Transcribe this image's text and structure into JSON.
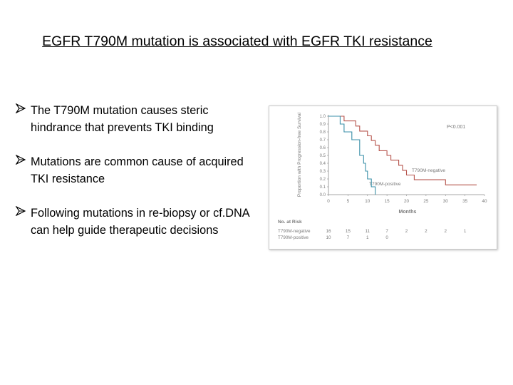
{
  "slide": {
    "title": "EGFR T790M mutation is associated with EGFR TKI resistance"
  },
  "bullets": [
    {
      "text": "The T790M mutation causes steric hindrance that prevents TKI binding"
    },
    {
      "text": "Mutations are common cause of acquired TKI resistance"
    },
    {
      "text": "Following mutations in re-biopsy or cf.DNA can help guide therapeutic decisions"
    }
  ],
  "colors": {
    "negative_curve": "#b5524a",
    "positive_curve": "#3a8fa8",
    "axis": "#8a8a8a"
  },
  "chart_data": {
    "type": "line",
    "ylabel": "Proportion with Progression-free Survival",
    "xlabel": "Months",
    "ylim": [
      0,
      1.0
    ],
    "xlim": [
      0,
      40
    ],
    "y_ticks": [
      "1.0",
      "0.9",
      "0.8",
      "0.7",
      "0.6",
      "0.5",
      "0.4",
      "0.3",
      "0.2",
      "0.1",
      "0.0"
    ],
    "x_ticks": [
      "0",
      "5",
      "10",
      "15",
      "20",
      "25",
      "30",
      "35",
      "40"
    ],
    "annotation": "P<0.001",
    "series": [
      {
        "name": "T790M-negative",
        "color": "#b5524a",
        "points": [
          [
            0,
            1.0
          ],
          [
            4,
            1.0
          ],
          [
            4,
            0.94
          ],
          [
            7,
            0.94
          ],
          [
            7,
            0.875
          ],
          [
            8,
            0.875
          ],
          [
            8,
            0.81
          ],
          [
            10,
            0.81
          ],
          [
            10,
            0.75
          ],
          [
            11,
            0.75
          ],
          [
            11,
            0.69
          ],
          [
            12,
            0.69
          ],
          [
            12,
            0.63
          ],
          [
            13,
            0.63
          ],
          [
            13,
            0.56
          ],
          [
            15,
            0.56
          ],
          [
            15,
            0.5
          ],
          [
            16,
            0.5
          ],
          [
            16,
            0.44
          ],
          [
            18,
            0.44
          ],
          [
            18,
            0.375
          ],
          [
            19,
            0.375
          ],
          [
            19,
            0.31
          ],
          [
            20,
            0.31
          ],
          [
            20,
            0.25
          ],
          [
            22,
            0.25
          ],
          [
            22,
            0.19
          ],
          [
            24,
            0.19
          ],
          [
            24,
            0.19
          ],
          [
            30,
            0.19
          ],
          [
            30,
            0.125
          ],
          [
            38,
            0.125
          ]
        ]
      },
      {
        "name": "T790M-positive",
        "color": "#3a8fa8",
        "points": [
          [
            0,
            1.0
          ],
          [
            3,
            1.0
          ],
          [
            3,
            0.9
          ],
          [
            4,
            0.9
          ],
          [
            4,
            0.8
          ],
          [
            6,
            0.8
          ],
          [
            6,
            0.7
          ],
          [
            8,
            0.7
          ],
          [
            8,
            0.5
          ],
          [
            9,
            0.5
          ],
          [
            9,
            0.4
          ],
          [
            9.5,
            0.4
          ],
          [
            9.5,
            0.3
          ],
          [
            10,
            0.3
          ],
          [
            10,
            0.2
          ],
          [
            11,
            0.2
          ],
          [
            11,
            0.1
          ],
          [
            12,
            0.1
          ],
          [
            12,
            0.0
          ]
        ]
      }
    ],
    "risk_table": {
      "header": "No. at Risk",
      "rows": [
        {
          "label": "T790M-negative",
          "values": [
            "16",
            "15",
            "11",
            "7",
            "2",
            "2",
            "2",
            "1"
          ]
        },
        {
          "label": "T790M-positive",
          "values": [
            "10",
            "7",
            "1",
            "0",
            "",
            "",
            "",
            ""
          ]
        }
      ],
      "months": [
        0,
        5,
        10,
        15,
        20,
        25,
        30,
        35
      ]
    }
  }
}
